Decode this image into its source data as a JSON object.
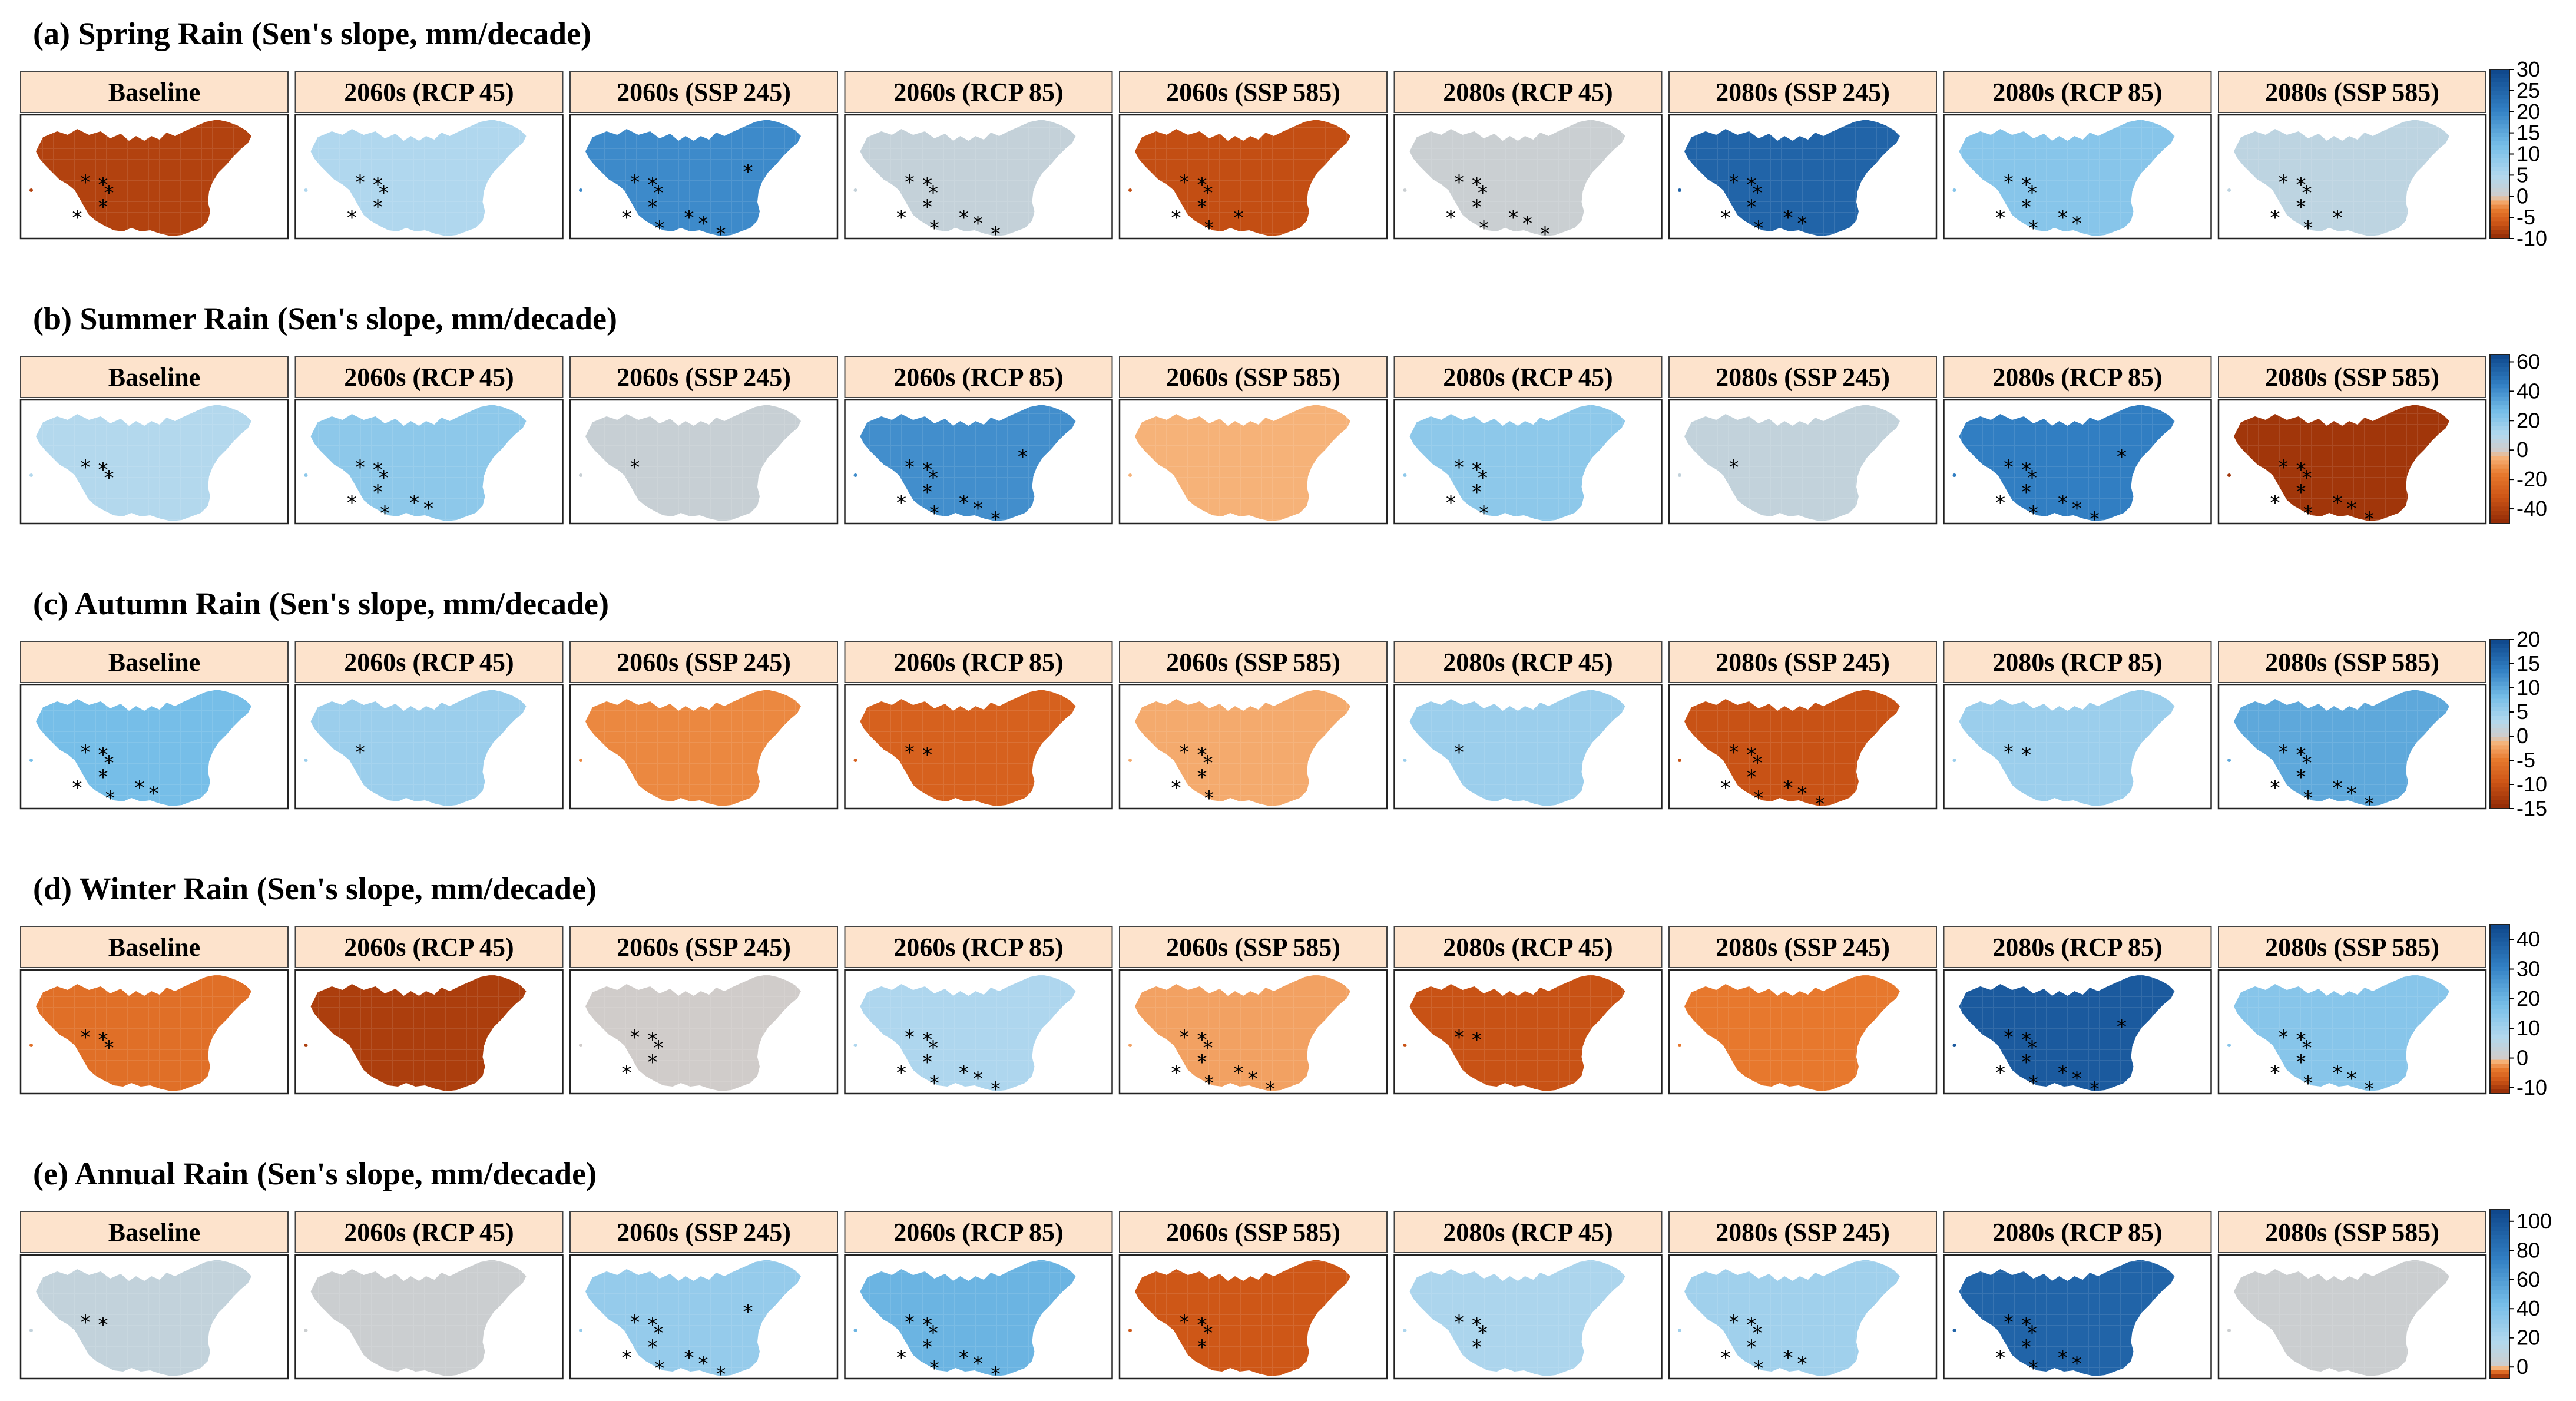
{
  "chart_data": [
    {
      "type": "heatmap",
      "panel": "(a)",
      "title": "(a) Spring Rain (Sen's slope, mm/decade)",
      "periods": [
        "Baseline",
        "2060s (RCP 45)",
        "2060s (SSP 245)",
        "2060s (RCP 85)",
        "2060s (SSP 585)",
        "2080s (RCP 45)",
        "2080s (SSP 245)",
        "2080s (RCP 85)",
        "2080s (SSP 585)"
      ],
      "mean_slopes": [
        -8,
        5,
        19,
        2,
        -7,
        1,
        25,
        10,
        3
      ],
      "significant_stations": [
        5,
        5,
        10,
        9,
        7,
        9,
        8,
        8,
        7
      ],
      "colorbar": {
        "range": [
          -10,
          30
        ],
        "ticks": [
          30,
          25,
          20,
          15,
          10,
          5,
          0,
          -5,
          -10
        ]
      }
    },
    {
      "type": "heatmap",
      "panel": "(b)",
      "title": "(b) Summer Rain (Sen's slope, mm/decade)",
      "periods": [
        "Baseline",
        "2060s (RCP 45)",
        "2060s (SSP 245)",
        "2060s (RCP 85)",
        "2060s (SSP 585)",
        "2080s (RCP 45)",
        "2080s (SSP 245)",
        "2080s (RCP 85)",
        "2080s (SSP 585)"
      ],
      "mean_slopes": [
        10,
        20,
        3,
        40,
        -5,
        20,
        5,
        45,
        -45
      ],
      "significant_stations": [
        3,
        8,
        1,
        10,
        0,
        6,
        1,
        10,
        9
      ],
      "colorbar": {
        "range": [
          -50,
          65
        ],
        "ticks": [
          60,
          40,
          20,
          0,
          -20,
          -40
        ]
      }
    },
    {
      "type": "heatmap",
      "panel": "(c)",
      "title": "(c) Autumn Rain (Sen's slope, mm/decade)",
      "periods": [
        "Baseline",
        "2060s (RCP 45)",
        "2060s (SSP 245)",
        "2060s (RCP 85)",
        "2060s (SSP 585)",
        "2080s (RCP 45)",
        "2080s (SSP 245)",
        "2080s (RCP 85)",
        "2080s (SSP 585)"
      ],
      "mean_slopes": [
        8,
        5,
        -4,
        -8,
        -2,
        5,
        -10,
        5,
        10
      ],
      "significant_stations": [
        8,
        1,
        0,
        2,
        6,
        1,
        9,
        2,
        9
      ],
      "colorbar": {
        "range": [
          -15,
          20
        ],
        "ticks": [
          20,
          15,
          10,
          5,
          0,
          -5,
          -10,
          -15
        ]
      }
    },
    {
      "type": "heatmap",
      "panel": "(d)",
      "title": "(d) Winter Rain (Sen's slope, mm/decade)",
      "periods": [
        "Baseline",
        "2060s (RCP 45)",
        "2060s (SSP 245)",
        "2060s (RCP 85)",
        "2060s (SSP 585)",
        "2080s (RCP 45)",
        "2080s (SSP 245)",
        "2080s (RCP 85)",
        "2080s (SSP 585)"
      ],
      "mean_slopes": [
        -5,
        -10,
        0,
        8,
        -2,
        -8,
        -4,
        40,
        15
      ],
      "significant_stations": [
        3,
        0,
        5,
        9,
        9,
        2,
        0,
        10,
        9
      ],
      "colorbar": {
        "range": [
          -12,
          45
        ],
        "ticks": [
          40,
          30,
          20,
          10,
          0,
          -10
        ]
      }
    },
    {
      "type": "heatmap",
      "panel": "(e)",
      "title": "(e) Annual Rain (Sen's slope, mm/decade)",
      "periods": [
        "Baseline",
        "2060s (RCP 45)",
        "2060s (SSP 245)",
        "2060s (RCP 85)",
        "2060s (SSP 585)",
        "2080s (RCP 45)",
        "2080s (SSP 245)",
        "2080s (RCP 85)",
        "2080s (SSP 585)"
      ],
      "mean_slopes": [
        8,
        3,
        30,
        48,
        -5,
        20,
        25,
        90,
        3
      ],
      "significant_stations": [
        2,
        0,
        10,
        9,
        4,
        4,
        8,
        8,
        0
      ],
      "colorbar": {
        "range": [
          -8,
          108
        ],
        "ticks": [
          100,
          80,
          60,
          40,
          20,
          0
        ]
      }
    }
  ]
}
